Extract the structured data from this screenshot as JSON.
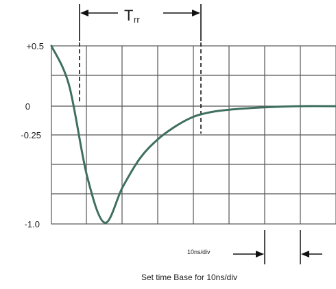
{
  "chart_data": {
    "type": "line",
    "title": "",
    "xlabel": "",
    "ylabel": "",
    "y_tick_labels": [
      "+0.5",
      "0",
      "-0.25",
      "-1.0"
    ],
    "grid": true,
    "line_color": "#3f6f60",
    "series": [
      {
        "x": [
          0,
          0.5,
          1,
          1.5,
          2,
          2.5,
          3,
          3.5,
          4,
          4.5,
          5,
          6,
          7,
          8
        ],
        "y": [
          0.5,
          0.17,
          -0.59,
          -0.99,
          -0.69,
          -0.44,
          -0.28,
          -0.17,
          -0.09,
          -0.05,
          -0.03,
          -0.01,
          0.0,
          0.0
        ]
      }
    ],
    "trr_label": "T",
    "trr_subscript": "rr",
    "timebase_label": "10ns/div",
    "caption": "Set time Base for 10ns/div"
  }
}
